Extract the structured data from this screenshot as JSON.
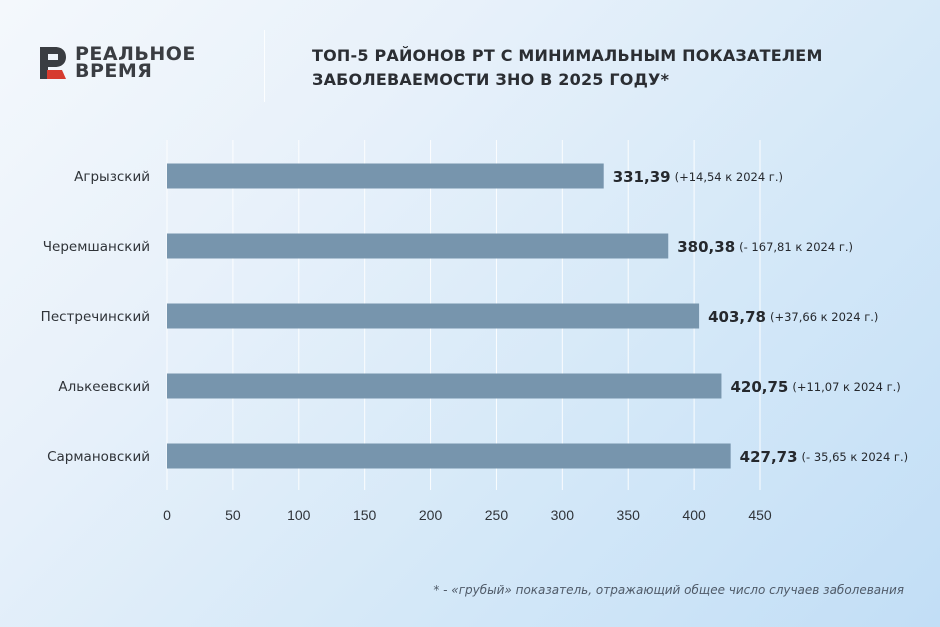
{
  "brand": {
    "line1": "РЕАЛЬНОЕ",
    "line2": "ВРЕМЯ",
    "accent": "#d63b2f",
    "dark": "#3a3d42"
  },
  "header": {
    "title_line1": "ТОП-5 РАЙОНОВ РТ С МИНИМАЛЬНЫМ ПОКАЗАТЕЛЕМ",
    "title_line2": "ЗАБОЛЕВАЕМОСТИ ЗНО В 2025 ГОДУ*"
  },
  "chart_data": {
    "type": "bar",
    "orientation": "horizontal",
    "categories": [
      "Агрызский",
      "Черемшанский",
      "Пестречинский",
      "Алькеевский",
      "Сармановский"
    ],
    "values": [
      331.39,
      380.38,
      403.78,
      420.75,
      427.73
    ],
    "value_labels": [
      "331,39",
      "380,38",
      "403,78",
      "420,75",
      "427,73"
    ],
    "change_labels": [
      "(+14,54 к 2024 г.)",
      "(- 167,81 к 2024 г.)",
      "(+37,66 к 2024 г.)",
      "(+11,07 к 2024 г.)",
      "(- 35,65 к 2024 г.)"
    ],
    "xlim": [
      0,
      450
    ],
    "x_ticks": [
      "0",
      "50",
      "100",
      "150",
      "200",
      "250",
      "300",
      "350",
      "400",
      "450"
    ],
    "grid": true,
    "bar_color": "#7795ad"
  },
  "footnote": "* - «грубый» показатель, отражающий общее число случаев заболевания"
}
